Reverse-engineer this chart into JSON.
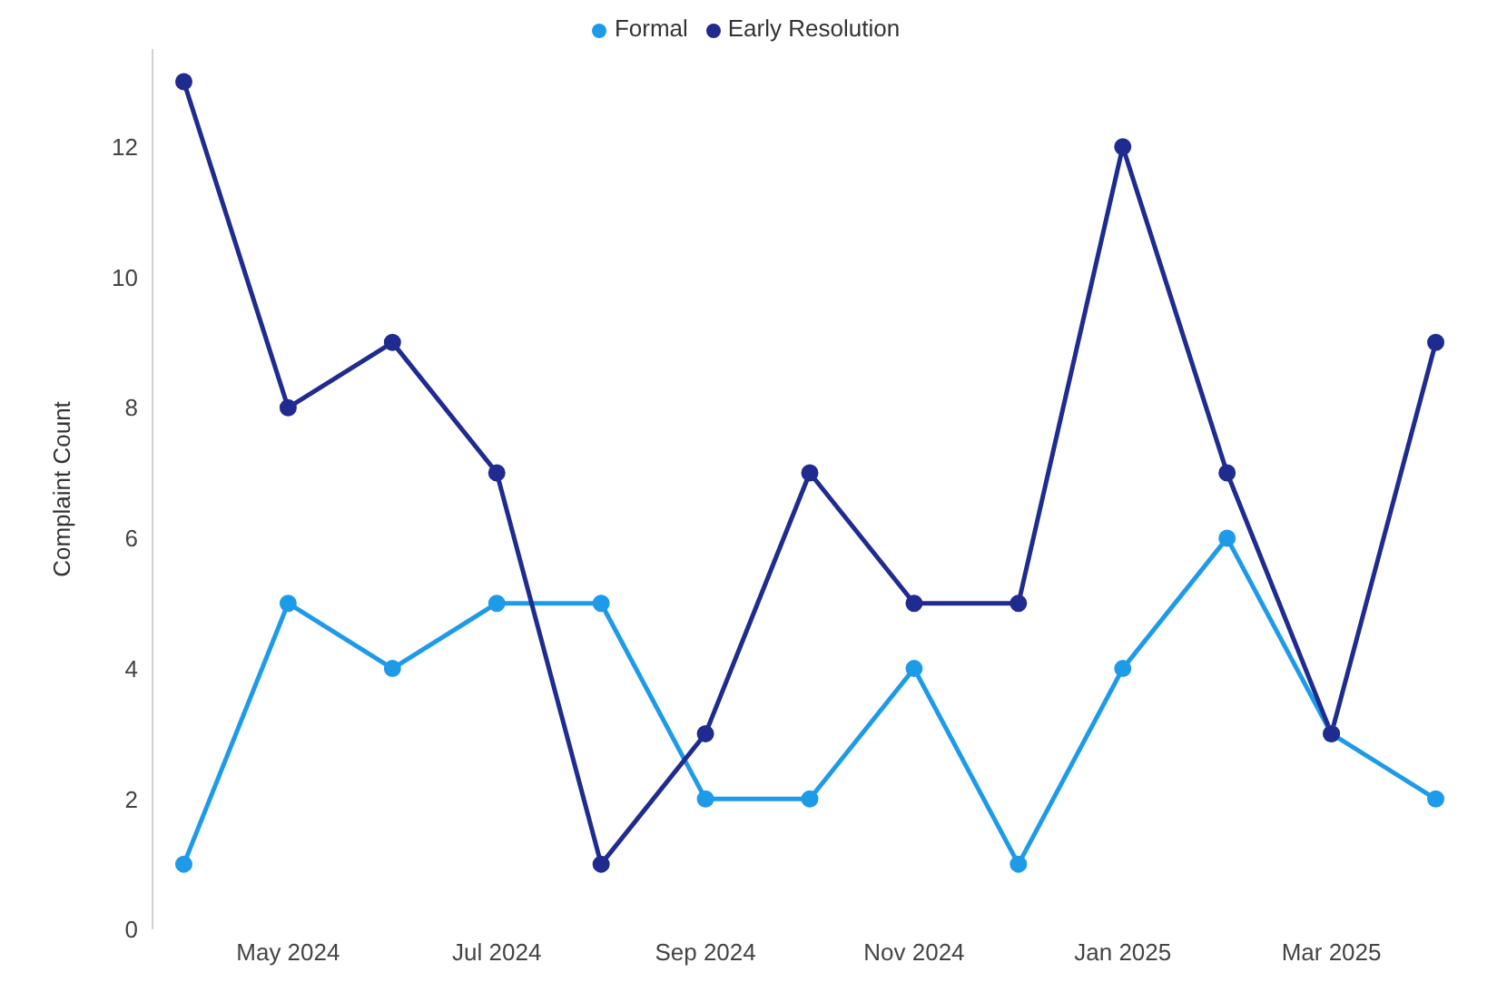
{
  "chart_data": {
    "type": "line",
    "ylabel": "Complaint Count",
    "categories": [
      null,
      "May 2024",
      null,
      "Jul 2024",
      null,
      "Sep 2024",
      null,
      "Nov 2024",
      null,
      "Jan 2025",
      null,
      "Mar 2025",
      null
    ],
    "series": [
      {
        "name": "Formal",
        "color": "#1e9be8",
        "values": [
          1,
          5,
          4,
          5,
          5,
          2,
          2,
          4,
          1,
          4,
          6,
          3,
          2
        ]
      },
      {
        "name": "Early Resolution",
        "color": "#1f2b8f",
        "values": [
          13,
          8,
          9,
          7,
          1,
          3,
          7,
          5,
          5,
          12,
          7,
          3,
          9
        ]
      }
    ],
    "ylim": [
      0,
      13.5
    ],
    "yticks": [
      0,
      2,
      4,
      6,
      8,
      10,
      12
    ],
    "grid": false,
    "legend": "top",
    "marker": "circle",
    "line_style": "solid"
  }
}
